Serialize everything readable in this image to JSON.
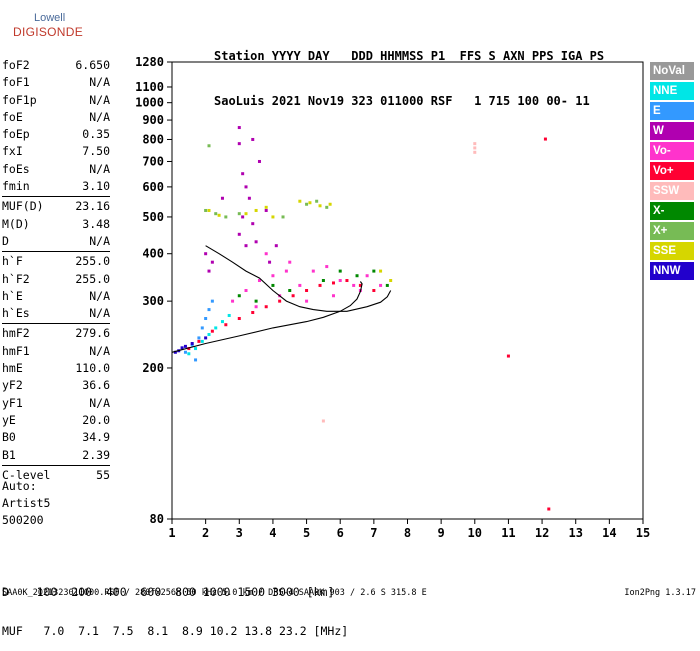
{
  "logo": {
    "line1": "Lowell",
    "line2": "DIGISONDE"
  },
  "header": {
    "line1": "Station YYYY DAY   DDD HHMMSS P1  FFS S AXN PPS IGA PS",
    "line2": "SaoLuis 2021 Nov19 323 011000 RSF   1 715 100 00- 11"
  },
  "params": [
    {
      "label": "foF2",
      "value": "6.650"
    },
    {
      "label": "foF1",
      "value": "N/A"
    },
    {
      "label": "foF1p",
      "value": "N/A"
    },
    {
      "label": "foE",
      "value": "N/A"
    },
    {
      "label": "foEp",
      "value": "0.35"
    },
    {
      "label": "fxI",
      "value": "7.50"
    },
    {
      "label": "foEs",
      "value": "N/A"
    },
    {
      "label": "fmin",
      "value": "3.10"
    },
    {
      "sep": true
    },
    {
      "label": "MUF(D)",
      "value": "23.16"
    },
    {
      "label": "M(D)",
      "value": "3.48"
    },
    {
      "label": "D",
      "value": "N/A"
    },
    {
      "sep": true
    },
    {
      "label": "h`F",
      "value": "255.0"
    },
    {
      "label": "h`F2",
      "value": "255.0"
    },
    {
      "label": "h`E",
      "value": "N/A"
    },
    {
      "label": "h`Es",
      "value": "N/A"
    },
    {
      "sep": true
    },
    {
      "label": "hmF2",
      "value": "279.6"
    },
    {
      "label": "hmF1",
      "value": "N/A"
    },
    {
      "label": "hmE",
      "value": "110.0"
    },
    {
      "label": "yF2",
      "value": "36.6"
    },
    {
      "label": "yF1",
      "value": "N/A"
    },
    {
      "label": "yE",
      "value": "20.0"
    },
    {
      "label": "B0",
      "value": "34.9"
    },
    {
      "label": "B1",
      "value": "2.39"
    },
    {
      "sep": true
    },
    {
      "label": "C-level",
      "value": "55"
    }
  ],
  "auto": {
    "line1": "Auto:",
    "line2": "Artist5",
    "line3": "500200"
  },
  "dmuf": {
    "d_line": "D    100  200  400  600  800 1000 1500 3000 [km]",
    "muf_line": "MUF   7.0  7.1  7.5  8.1  8.9 10.2 13.8 23.2 [MHz]"
  },
  "footer": {
    "left": "SAA0K_2021323011000.RSF / 280fx256h 50 kHz 5.0 km / DPS-4 SAA0K 903 / 2.6 S 315.8 E",
    "right": "Ion2Png 1.3.17"
  },
  "legend": [
    {
      "label": "NoVal",
      "color": "#999999"
    },
    {
      "label": "NNE",
      "color": "#00e6e6"
    },
    {
      "label": "E",
      "color": "#3399ff"
    },
    {
      "label": "W",
      "color": "#b000b0"
    },
    {
      "label": "Vo-",
      "color": "#ff33cc"
    },
    {
      "label": "Vo+",
      "color": "#ff0033"
    },
    {
      "label": "SSW",
      "color": "#ffbbbb"
    },
    {
      "label": "X-",
      "color": "#008800"
    },
    {
      "label": "X+",
      "color": "#77bb55"
    },
    {
      "label": "SSE",
      "color": "#d6d600"
    },
    {
      "label": "NNW",
      "color": "#2200cc"
    }
  ],
  "chart_data": {
    "type": "scatter",
    "title": "",
    "xlabel": "",
    "ylabel": "",
    "xlim": [
      1,
      15
    ],
    "ylim": [
      80,
      1280
    ],
    "y_scale": "log",
    "grid": false,
    "x_ticks": [
      1,
      2,
      3,
      4,
      5,
      6,
      7,
      8,
      9,
      10,
      11,
      12,
      13,
      14,
      15
    ],
    "y_ticks": [
      80,
      200,
      300,
      400,
      500,
      600,
      700,
      800,
      900,
      1000,
      1100,
      1280
    ],
    "series": [
      {
        "name": "W",
        "points": [
          [
            3.0,
            780
          ],
          [
            3.1,
            650
          ],
          [
            3.2,
            600
          ],
          [
            3.3,
            560
          ],
          [
            3.1,
            500
          ],
          [
            3.4,
            480
          ],
          [
            3.0,
            450
          ],
          [
            3.2,
            420
          ],
          [
            3.5,
            430
          ],
          [
            2.0,
            400
          ],
          [
            2.2,
            380
          ],
          [
            2.1,
            360
          ],
          [
            3.8,
            520
          ],
          [
            3.6,
            700
          ],
          [
            3.4,
            800
          ],
          [
            3.9,
            380
          ],
          [
            4.1,
            420
          ],
          [
            2.5,
            560
          ],
          [
            3.0,
            860
          ]
        ]
      },
      {
        "name": "Vo-",
        "points": [
          [
            2.8,
            300
          ],
          [
            3.2,
            320
          ],
          [
            3.6,
            340
          ],
          [
            4.0,
            350
          ],
          [
            4.4,
            360
          ],
          [
            4.8,
            330
          ],
          [
            5.2,
            360
          ],
          [
            5.6,
            370
          ],
          [
            6.0,
            340
          ],
          [
            6.4,
            330
          ],
          [
            6.8,
            350
          ],
          [
            7.2,
            330
          ],
          [
            3.5,
            290
          ],
          [
            4.2,
            310
          ],
          [
            5.0,
            300
          ],
          [
            5.8,
            310
          ],
          [
            6.6,
            320
          ],
          [
            3.8,
            400
          ],
          [
            4.5,
            380
          ]
        ]
      },
      {
        "name": "Vo+",
        "points": [
          [
            1.5,
            225
          ],
          [
            1.8,
            235
          ],
          [
            2.2,
            250
          ],
          [
            2.6,
            260
          ],
          [
            3.0,
            270
          ],
          [
            3.4,
            280
          ],
          [
            3.8,
            290
          ],
          [
            4.2,
            300
          ],
          [
            4.6,
            310
          ],
          [
            5.0,
            320
          ],
          [
            5.4,
            330
          ],
          [
            5.8,
            335
          ],
          [
            6.2,
            340
          ],
          [
            6.6,
            330
          ],
          [
            7.0,
            320
          ],
          [
            11.0,
            215
          ],
          [
            12.1,
            802
          ],
          [
            12.2,
            85
          ]
        ]
      },
      {
        "name": "E",
        "points": [
          [
            1.4,
            220
          ],
          [
            1.6,
            230
          ],
          [
            1.8,
            240
          ],
          [
            1.9,
            255
          ],
          [
            2.0,
            270
          ],
          [
            2.1,
            285
          ],
          [
            2.2,
            300
          ],
          [
            1.7,
            210
          ]
        ]
      },
      {
        "name": "NNE",
        "points": [
          [
            1.5,
            218
          ],
          [
            1.7,
            225
          ],
          [
            1.9,
            235
          ],
          [
            2.1,
            245
          ],
          [
            2.3,
            255
          ],
          [
            2.5,
            265
          ],
          [
            2.7,
            275
          ]
        ]
      },
      {
        "name": "NNW",
        "points": [
          [
            1.1,
            220
          ],
          [
            1.2,
            222
          ],
          [
            1.3,
            226
          ],
          [
            1.4,
            228
          ],
          [
            1.6,
            232
          ],
          [
            2.0,
            240
          ]
        ]
      },
      {
        "name": "X-",
        "points": [
          [
            3.5,
            300
          ],
          [
            4.5,
            320
          ],
          [
            5.5,
            340
          ],
          [
            6.5,
            350
          ],
          [
            7.0,
            360
          ],
          [
            7.4,
            330
          ],
          [
            3.0,
            310
          ],
          [
            4.0,
            330
          ],
          [
            6.0,
            360
          ]
        ]
      },
      {
        "name": "X+",
        "points": [
          [
            2.0,
            520
          ],
          [
            2.3,
            510
          ],
          [
            2.6,
            500
          ],
          [
            5.0,
            540
          ],
          [
            5.3,
            550
          ],
          [
            5.6,
            530
          ],
          [
            3.0,
            510
          ],
          [
            2.1,
            770
          ],
          [
            4.3,
            500
          ]
        ]
      },
      {
        "name": "SSE",
        "points": [
          [
            2.1,
            520
          ],
          [
            2.4,
            505
          ],
          [
            3.2,
            510
          ],
          [
            3.5,
            520
          ],
          [
            4.8,
            550
          ],
          [
            5.1,
            545
          ],
          [
            5.4,
            535
          ],
          [
            5.7,
            540
          ],
          [
            4.0,
            500
          ],
          [
            3.8,
            530
          ],
          [
            7.2,
            360
          ],
          [
            7.5,
            340
          ]
        ]
      },
      {
        "name": "SSW",
        "points": [
          [
            10.0,
            760
          ],
          [
            10.0,
            740
          ],
          [
            10.0,
            780
          ],
          [
            5.5,
            145
          ]
        ]
      }
    ],
    "traces": [
      {
        "name": "o-trace",
        "points": [
          [
            1.0,
            220
          ],
          [
            2.0,
            232
          ],
          [
            3.0,
            243
          ],
          [
            4.0,
            255
          ],
          [
            5.0,
            265
          ],
          [
            5.5,
            272
          ],
          [
            6.0,
            282
          ],
          [
            6.3,
            292
          ],
          [
            6.5,
            304
          ],
          [
            6.6,
            318
          ],
          [
            6.65,
            333
          ],
          [
            6.6,
            338
          ]
        ]
      },
      {
        "name": "x-trace",
        "points": [
          [
            2.0,
            420
          ],
          [
            2.4,
            400
          ],
          [
            2.8,
            380
          ],
          [
            3.2,
            360
          ],
          [
            3.6,
            345
          ],
          [
            4.0,
            320
          ],
          [
            4.4,
            300
          ],
          [
            4.8,
            290
          ],
          [
            5.2,
            285
          ],
          [
            5.6,
            282
          ],
          [
            6.2,
            282
          ],
          [
            6.8,
            290
          ],
          [
            7.2,
            298
          ],
          [
            7.4,
            308
          ],
          [
            7.5,
            320
          ]
        ]
      }
    ]
  }
}
